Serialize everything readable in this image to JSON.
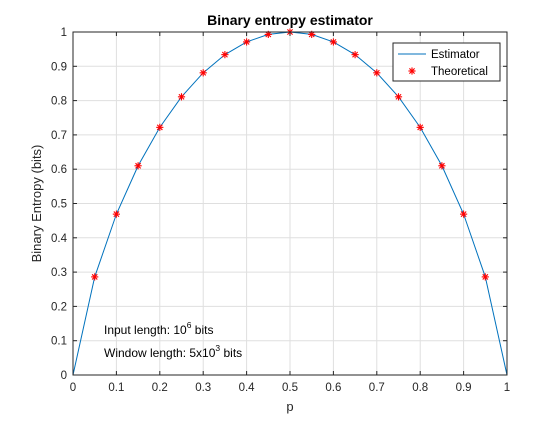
{
  "chart_data": {
    "type": "line",
    "title": "Binary entropy estimator",
    "xlabel": "p",
    "ylabel": "Binary Entropy (bits)",
    "xlim": [
      0,
      1
    ],
    "ylim": [
      0,
      1
    ],
    "xticks": [
      "0",
      "0.1",
      "0.2",
      "0.3",
      "0.4",
      "0.5",
      "0.6",
      "0.7",
      "0.8",
      "0.9",
      "1"
    ],
    "yticks": [
      "0",
      "0.1",
      "0.2",
      "0.3",
      "0.4",
      "0.5",
      "0.6",
      "0.7",
      "0.8",
      "0.9",
      "1"
    ],
    "grid": true,
    "legend_position": "top-right",
    "series": [
      {
        "name": "Estimator",
        "style": "line",
        "color": "#0072BD",
        "x": [
          0,
          0.05,
          0.1,
          0.15,
          0.2,
          0.25,
          0.3,
          0.35,
          0.4,
          0.45,
          0.5,
          0.55,
          0.6,
          0.65,
          0.7,
          0.75,
          0.8,
          0.85,
          0.9,
          0.95,
          1
        ],
        "y": [
          0,
          0.286,
          0.469,
          0.61,
          0.722,
          0.811,
          0.881,
          0.934,
          0.971,
          0.993,
          1.0,
          0.993,
          0.971,
          0.934,
          0.881,
          0.811,
          0.722,
          0.61,
          0.469,
          0.286,
          0
        ]
      },
      {
        "name": "Theoretical",
        "style": "marker",
        "marker": "asterisk",
        "color": "#FF0000",
        "x": [
          0.05,
          0.1,
          0.15,
          0.2,
          0.25,
          0.3,
          0.35,
          0.4,
          0.45,
          0.5,
          0.55,
          0.6,
          0.65,
          0.7,
          0.75,
          0.8,
          0.85,
          0.9,
          0.95
        ],
        "y": [
          0.286,
          0.469,
          0.61,
          0.722,
          0.811,
          0.881,
          0.934,
          0.971,
          0.993,
          1.0,
          0.993,
          0.971,
          0.934,
          0.881,
          0.811,
          0.722,
          0.61,
          0.469,
          0.286
        ]
      }
    ],
    "annotations": [
      {
        "text": "Input length: 10",
        "superscript": "6",
        "suffix": " bits"
      },
      {
        "text": "Window length: 5x10",
        "superscript": "3",
        "suffix": " bits"
      }
    ]
  }
}
